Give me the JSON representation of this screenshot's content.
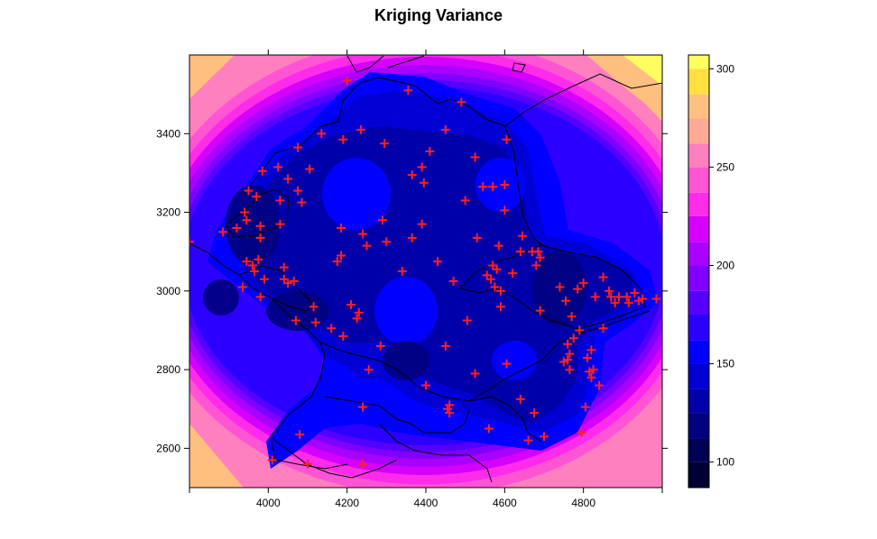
{
  "chart_data": {
    "type": "heatmap",
    "title": "Kriging Variance",
    "xlabel": "",
    "ylabel": "",
    "xlim": [
      3800,
      5000
    ],
    "ylim": [
      2500,
      3600
    ],
    "x_ticks": [
      4000,
      4200,
      4400,
      4600,
      4800
    ],
    "y_ticks": [
      2600,
      2800,
      3000,
      3200,
      3400
    ],
    "colorbar": {
      "range": [
        87,
        307
      ],
      "ticks": [
        100,
        150,
        200,
        250,
        300
      ],
      "levels": [
        87,
        100,
        112,
        125,
        137,
        150,
        162,
        175,
        187,
        200,
        212,
        225,
        237,
        250,
        262,
        275,
        287,
        300,
        307
      ],
      "colors": [
        "#000033",
        "#000055",
        "#000080",
        "#0000AA",
        "#0000D5",
        "#0000FF",
        "#2B00FF",
        "#5500FF",
        "#8000FF",
        "#AA00FF",
        "#D500FF",
        "#FF2BEB",
        "#FF55D5",
        "#FF80BF",
        "#FFAA95",
        "#FFBF80",
        "#FFE040",
        "#FFFF60"
      ]
    },
    "sample_marker": "red-plus",
    "sample_points": [
      [
        3800,
        3125
      ],
      [
        3885,
        3150
      ],
      [
        3920,
        3160
      ],
      [
        3935,
        3010
      ],
      [
        3940,
        3200
      ],
      [
        3945,
        3180
      ],
      [
        3945,
        3075
      ],
      [
        3950,
        3255
      ],
      [
        3960,
        3065
      ],
      [
        3965,
        3050
      ],
      [
        3970,
        3240
      ],
      [
        3975,
        3080
      ],
      [
        3980,
        3165
      ],
      [
        3980,
        3135
      ],
      [
        3980,
        2985
      ],
      [
        3985,
        3305
      ],
      [
        3990,
        3030
      ],
      [
        4025,
        3315
      ],
      [
        4030,
        3230
      ],
      [
        4030,
        3170
      ],
      [
        4040,
        3060
      ],
      [
        4040,
        3030
      ],
      [
        4050,
        3020
      ],
      [
        4050,
        3285
      ],
      [
        4065,
        3025
      ],
      [
        4070,
        2925
      ],
      [
        4075,
        3255
      ],
      [
        4075,
        3365
      ],
      [
        4085,
        3225
      ],
      [
        4105,
        3310
      ],
      [
        4115,
        2960
      ],
      [
        4120,
        2920
      ],
      [
        4135,
        3400
      ],
      [
        4160,
        2905
      ],
      [
        4175,
        3075
      ],
      [
        4185,
        3090
      ],
      [
        4185,
        3160
      ],
      [
        4190,
        3385
      ],
      [
        4190,
        2885
      ],
      [
        4210,
        2965
      ],
      [
        4225,
        2930
      ],
      [
        4230,
        2945
      ],
      [
        4235,
        3410
      ],
      [
        4240,
        3145
      ],
      [
        4250,
        3115
      ],
      [
        4255,
        2800
      ],
      [
        4285,
        2860
      ],
      [
        4290,
        3180
      ],
      [
        4295,
        3375
      ],
      [
        4300,
        3125
      ],
      [
        4340,
        3050
      ],
      [
        4355,
        3510
      ],
      [
        4365,
        3135
      ],
      [
        4365,
        3295
      ],
      [
        4390,
        3170
      ],
      [
        4390,
        3315
      ],
      [
        4395,
        3275
      ],
      [
        4400,
        2760
      ],
      [
        4410,
        3355
      ],
      [
        4430,
        3075
      ],
      [
        4450,
        3410
      ],
      [
        4450,
        2860
      ],
      [
        4455,
        2700
      ],
      [
        4460,
        2690
      ],
      [
        4470,
        3025
      ],
      [
        4490,
        3480
      ],
      [
        4500,
        3230
      ],
      [
        4505,
        2925
      ],
      [
        4525,
        3340
      ],
      [
        4525,
        2790
      ],
      [
        4530,
        3135
      ],
      [
        4545,
        3265
      ],
      [
        4555,
        3040
      ],
      [
        4565,
        3030
      ],
      [
        4570,
        3265
      ],
      [
        4570,
        3065
      ],
      [
        4575,
        3010
      ],
      [
        4580,
        3055
      ],
      [
        4585,
        3115
      ],
      [
        4590,
        3000
      ],
      [
        4590,
        2960
      ],
      [
        4600,
        3270
      ],
      [
        4600,
        3205
      ],
      [
        4605,
        3385
      ],
      [
        4605,
        2815
      ],
      [
        4620,
        3045
      ],
      [
        4640,
        3100
      ],
      [
        4640,
        2725
      ],
      [
        4645,
        3140
      ],
      [
        4660,
        2620
      ],
      [
        4670,
        3100
      ],
      [
        4675,
        2690
      ],
      [
        4680,
        3065
      ],
      [
        4685,
        3100
      ],
      [
        4690,
        2950
      ],
      [
        4690,
        3085
      ],
      [
        4700,
        2630
      ],
      [
        4740,
        3010
      ],
      [
        4750,
        2820
      ],
      [
        4755,
        2975
      ],
      [
        4760,
        2865
      ],
      [
        4760,
        2825
      ],
      [
        4765,
        2840
      ],
      [
        4765,
        2800
      ],
      [
        4770,
        2935
      ],
      [
        4775,
        2880
      ],
      [
        4785,
        3005
      ],
      [
        4790,
        2900
      ],
      [
        4795,
        2640
      ],
      [
        4800,
        3020
      ],
      [
        4805,
        2705
      ],
      [
        4810,
        2830
      ],
      [
        4815,
        2795
      ],
      [
        4820,
        2780
      ],
      [
        4820,
        2850
      ],
      [
        4825,
        2800
      ],
      [
        4830,
        2985
      ],
      [
        4840,
        2760
      ],
      [
        4850,
        2905
      ],
      [
        4850,
        3035
      ],
      [
        4865,
        3000
      ],
      [
        4870,
        2985
      ],
      [
        4880,
        2970
      ],
      [
        4890,
        2985
      ],
      [
        4910,
        2985
      ],
      [
        4915,
        2970
      ],
      [
        4930,
        2995
      ],
      [
        4940,
        2975
      ],
      [
        4950,
        2980
      ],
      [
        4985,
        2980
      ],
      [
        4010,
        2570
      ],
      [
        4080,
        2635
      ],
      [
        4100,
        2560
      ],
      [
        4240,
        2560
      ],
      [
        4240,
        2705
      ],
      [
        4460,
        2710
      ],
      [
        4560,
        2650
      ],
      [
        4200,
        3535
      ]
    ]
  }
}
